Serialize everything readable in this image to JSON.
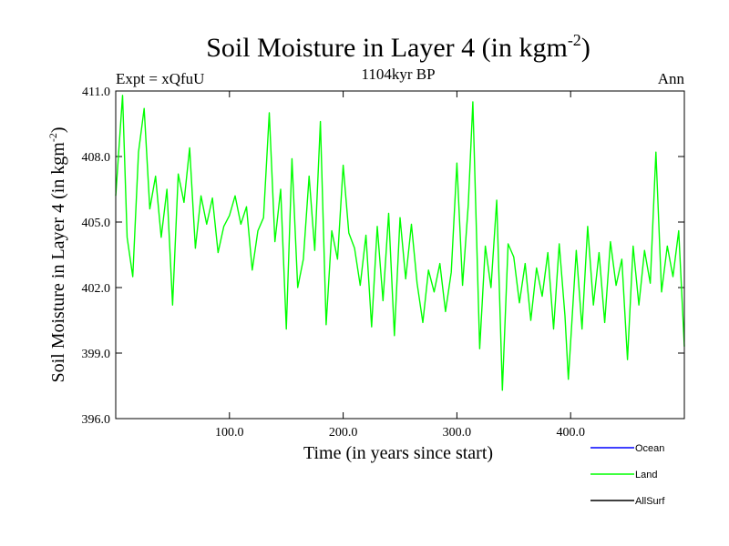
{
  "chart_data": {
    "type": "line",
    "title": "Soil Moisture in Layer 4 (in kgm",
    "title_sup": "-2",
    "title_close": ")",
    "subtitle": "1104kyr BP",
    "left_label": "Expt = xQfuU",
    "right_label": "Ann",
    "xlabel": "Time (in years since start)",
    "ylabel": "Soil Moisture in Layer 4 (in kgm",
    "ylabel_sup": "-2",
    "ylabel_close": ")",
    "xlim": [
      0,
      500
    ],
    "ylim": [
      396,
      411
    ],
    "x_ticks": [
      100,
      200,
      300,
      400
    ],
    "x_tick_labels": [
      "100.0",
      "200.0",
      "300.0",
      "400.0"
    ],
    "y_ticks": [
      396,
      399,
      402,
      405,
      408,
      411
    ],
    "y_tick_labels": [
      "396.0",
      "399.0",
      "402.0",
      "405.0",
      "408.0",
      "411.0"
    ],
    "legend": [
      {
        "name": "Ocean",
        "color": "#0000ff"
      },
      {
        "name": "Land",
        "color": "#00ff00"
      },
      {
        "name": "AllSurf",
        "color": "#000000"
      }
    ],
    "series": [
      {
        "name": "Land",
        "color": "#00ff00",
        "x": [
          0,
          6,
          10,
          15,
          20,
          25,
          30,
          35,
          40,
          45,
          50,
          55,
          60,
          65,
          70,
          75,
          80,
          85,
          90,
          95,
          100,
          105,
          110,
          115,
          120,
          125,
          130,
          135,
          140,
          145,
          150,
          155,
          160,
          165,
          170,
          175,
          180,
          185,
          190,
          195,
          200,
          205,
          210,
          215,
          220,
          225,
          230,
          235,
          240,
          245,
          250,
          255,
          260,
          265,
          270,
          275,
          280,
          285,
          290,
          295,
          300,
          305,
          310,
          314,
          320,
          325,
          330,
          335,
          340,
          345,
          350,
          355,
          360,
          365,
          370,
          375,
          380,
          385,
          390,
          395,
          398,
          405,
          410,
          415,
          420,
          425,
          430,
          435,
          440,
          445,
          450,
          455,
          460,
          465,
          470,
          475,
          480,
          485,
          490,
          495,
          500
        ],
        "values": [
          406.2,
          410.8,
          404.3,
          402.5,
          408.2,
          410.2,
          405.6,
          407.1,
          404.3,
          406.5,
          401.2,
          407.2,
          405.9,
          408.4,
          403.8,
          406.2,
          404.9,
          406.1,
          403.6,
          404.8,
          405.3,
          406.2,
          404.9,
          405.7,
          402.8,
          404.6,
          405.2,
          410.0,
          404.1,
          406.5,
          400.1,
          407.9,
          402.0,
          403.3,
          407.1,
          403.7,
          409.6,
          400.3,
          404.6,
          403.3,
          407.6,
          404.5,
          403.8,
          402.1,
          404.4,
          400.2,
          404.8,
          401.4,
          405.4,
          399.8,
          405.2,
          402.4,
          404.9,
          402.2,
          400.4,
          402.8,
          401.8,
          403.1,
          400.9,
          402.7,
          407.7,
          402.1,
          405.8,
          410.5,
          399.2,
          403.9,
          402.0,
          406.0,
          397.3,
          404.0,
          403.4,
          401.3,
          403.1,
          400.5,
          402.9,
          401.6,
          403.6,
          400.1,
          404.0,
          400.7,
          397.8,
          403.7,
          400.1,
          404.8,
          401.2,
          403.6,
          400.4,
          404.1,
          402.1,
          403.3,
          398.7,
          403.9,
          401.2,
          403.7,
          402.2,
          408.2,
          401.8,
          403.9,
          402.5,
          404.6,
          399.3
        ]
      }
    ]
  }
}
